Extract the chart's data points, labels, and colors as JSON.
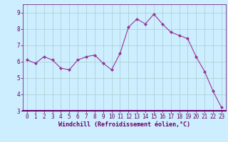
{
  "x": [
    0,
    1,
    2,
    3,
    4,
    5,
    6,
    7,
    8,
    9,
    10,
    11,
    12,
    13,
    14,
    15,
    16,
    17,
    18,
    19,
    20,
    21,
    22,
    23
  ],
  "y": [
    6.1,
    5.9,
    6.3,
    6.1,
    5.6,
    5.5,
    6.1,
    6.3,
    6.4,
    5.9,
    5.5,
    6.5,
    8.1,
    8.6,
    8.3,
    8.9,
    8.3,
    7.8,
    7.6,
    7.4,
    6.3,
    5.4,
    4.2,
    3.2
  ],
  "line_color": "#993399",
  "marker": "D",
  "markersize": 2.0,
  "linewidth": 0.8,
  "bg_color": "#cceeff",
  "plot_bg_color": "#cceeff",
  "grid_color": "#aacccc",
  "xlabel": "Windchill (Refroidissement éolien,°C)",
  "ylabel": "",
  "xlim": [
    -0.5,
    23.5
  ],
  "ylim": [
    3,
    9.5
  ],
  "yticks": [
    3,
    4,
    5,
    6,
    7,
    8,
    9
  ],
  "xticks": [
    0,
    1,
    2,
    3,
    4,
    5,
    6,
    7,
    8,
    9,
    10,
    11,
    12,
    13,
    14,
    15,
    16,
    17,
    18,
    19,
    20,
    21,
    22,
    23
  ],
  "tick_fontsize": 5.5,
  "xlabel_fontsize": 6.0,
  "axis_color": "#660066",
  "spine_color": "#660066",
  "spine_linewidth": 1.5
}
